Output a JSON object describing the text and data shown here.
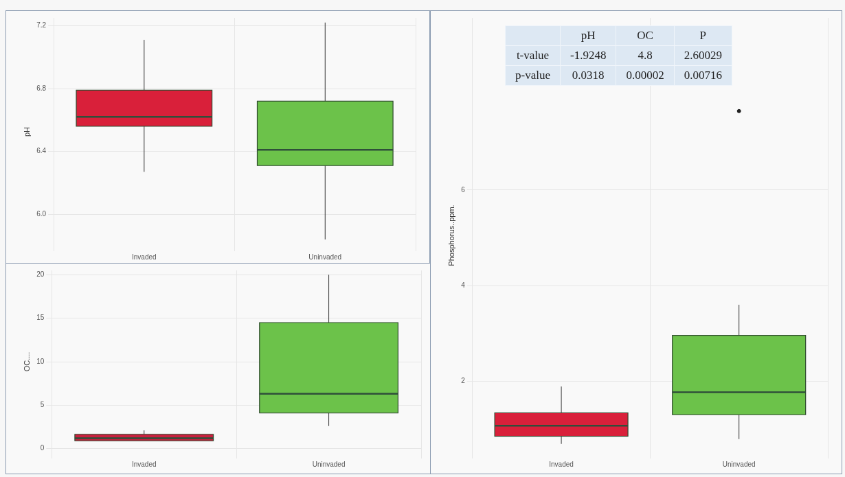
{
  "chart_data": [
    {
      "type": "box",
      "ylabel": "pH",
      "categories": [
        "Invaded",
        "Uninvaded"
      ],
      "colors": [
        "#d9203a",
        "#6cc24a"
      ],
      "ylim": [
        5.8,
        7.25
      ],
      "yticks": [
        {
          "value": 6,
          "label": "6.0"
        },
        6.4,
        6.8,
        7.2
      ],
      "grid": true,
      "legend": false,
      "boxes": [
        {
          "low": 6.27,
          "q1": 6.56,
          "median": 6.62,
          "q3": 6.79,
          "high": 7.11
        },
        {
          "low": 5.84,
          "q1": 6.31,
          "median": 6.41,
          "q3": 6.72,
          "high": 7.22
        }
      ]
    },
    {
      "type": "box",
      "ylabel": "OC....",
      "categories": [
        "Invaded",
        "Uninvaded"
      ],
      "colors": [
        "#c8203e",
        "#6cc24a"
      ],
      "ylim": [
        -0.5,
        20.5
      ],
      "yticks": [
        0,
        5,
        10,
        15,
        20
      ],
      "grid": true,
      "legend": false,
      "boxes": [
        {
          "low": 0.9,
          "q1": 0.9,
          "median": 1.2,
          "q3": 1.65,
          "high": 2.1
        },
        {
          "low": 2.6,
          "q1": 4.1,
          "median": 6.3,
          "q3": 14.5,
          "high": 20
        }
      ]
    },
    {
      "type": "box",
      "ylabel": "Phosphorus..ppm.",
      "categories": [
        "Invaded",
        "Uninvaded"
      ],
      "colors": [
        "#d9203a",
        "#6cc24a"
      ],
      "ylim": [
        0.5,
        9.6
      ],
      "yticks": [
        2,
        4,
        6
      ],
      "grid": true,
      "legend": false,
      "boxes": [
        {
          "low": 0.69,
          "q1": 0.85,
          "median": 1.07,
          "q3": 1.34,
          "high": 1.89
        },
        {
          "low": 0.79,
          "q1": 1.3,
          "median": 1.77,
          "q3": 2.96,
          "high": 3.6,
          "outliers": [
            7.65
          ]
        }
      ]
    },
    {
      "type": "other",
      "categories": [
        "pH",
        "OC",
        "P"
      ],
      "y_categories": [
        "t-value",
        "p-value"
      ],
      "cell_labels": [
        [
          "-1.9248",
          "4.8",
          "2.60029"
        ],
        [
          "0.0318",
          "0.00002",
          "0.00716"
        ]
      ]
    }
  ]
}
